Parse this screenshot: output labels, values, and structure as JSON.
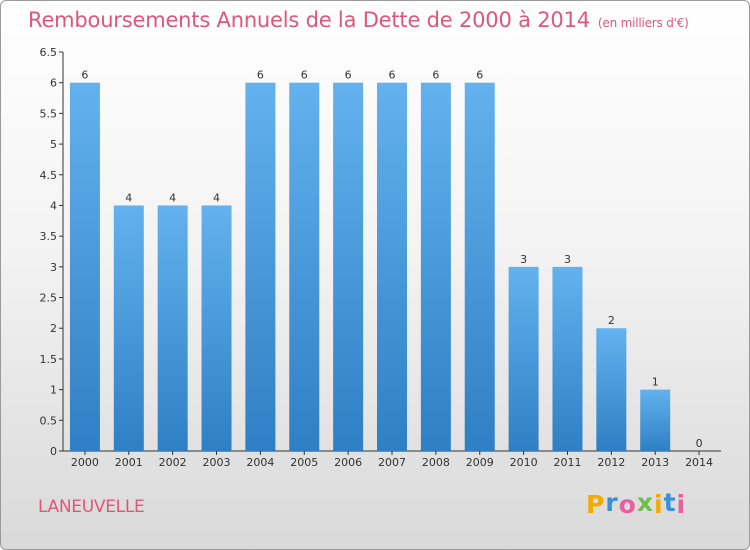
{
  "title": "Remboursements Annuels de la Dette de 2000 à 2014",
  "unit": "(en milliers d'€)",
  "commune": "LANEUVELLE",
  "logo": {
    "letters": [
      "P",
      "r",
      "o",
      "x",
      "i",
      "t",
      "i"
    ],
    "colors": [
      "#f2a900",
      "#3a8fd6",
      "#e95f9c",
      "#6cc04a",
      "#f2a900",
      "#3a8fd6",
      "#e95f9c"
    ]
  },
  "colors": {
    "bar_light": "#63b2ee",
    "bar_dark": "#2f7fc4",
    "title": "#e0567a"
  },
  "chart_data": {
    "type": "bar",
    "categories": [
      "2000",
      "2001",
      "2002",
      "2003",
      "2004",
      "2005",
      "2006",
      "2007",
      "2008",
      "2009",
      "2010",
      "2011",
      "2012",
      "2013",
      "2014"
    ],
    "values": [
      6,
      4,
      4,
      4,
      6,
      6,
      6,
      6,
      6,
      6,
      3,
      3,
      2,
      1,
      0
    ],
    "y_ticks": [
      "0",
      "0.5",
      "1",
      "1.5",
      "2",
      "2.5",
      "3",
      "3.5",
      "4",
      "4.5",
      "5",
      "5.5",
      "6",
      "6.5"
    ],
    "ylim": [
      0,
      6.5
    ],
    "grid": false
  }
}
